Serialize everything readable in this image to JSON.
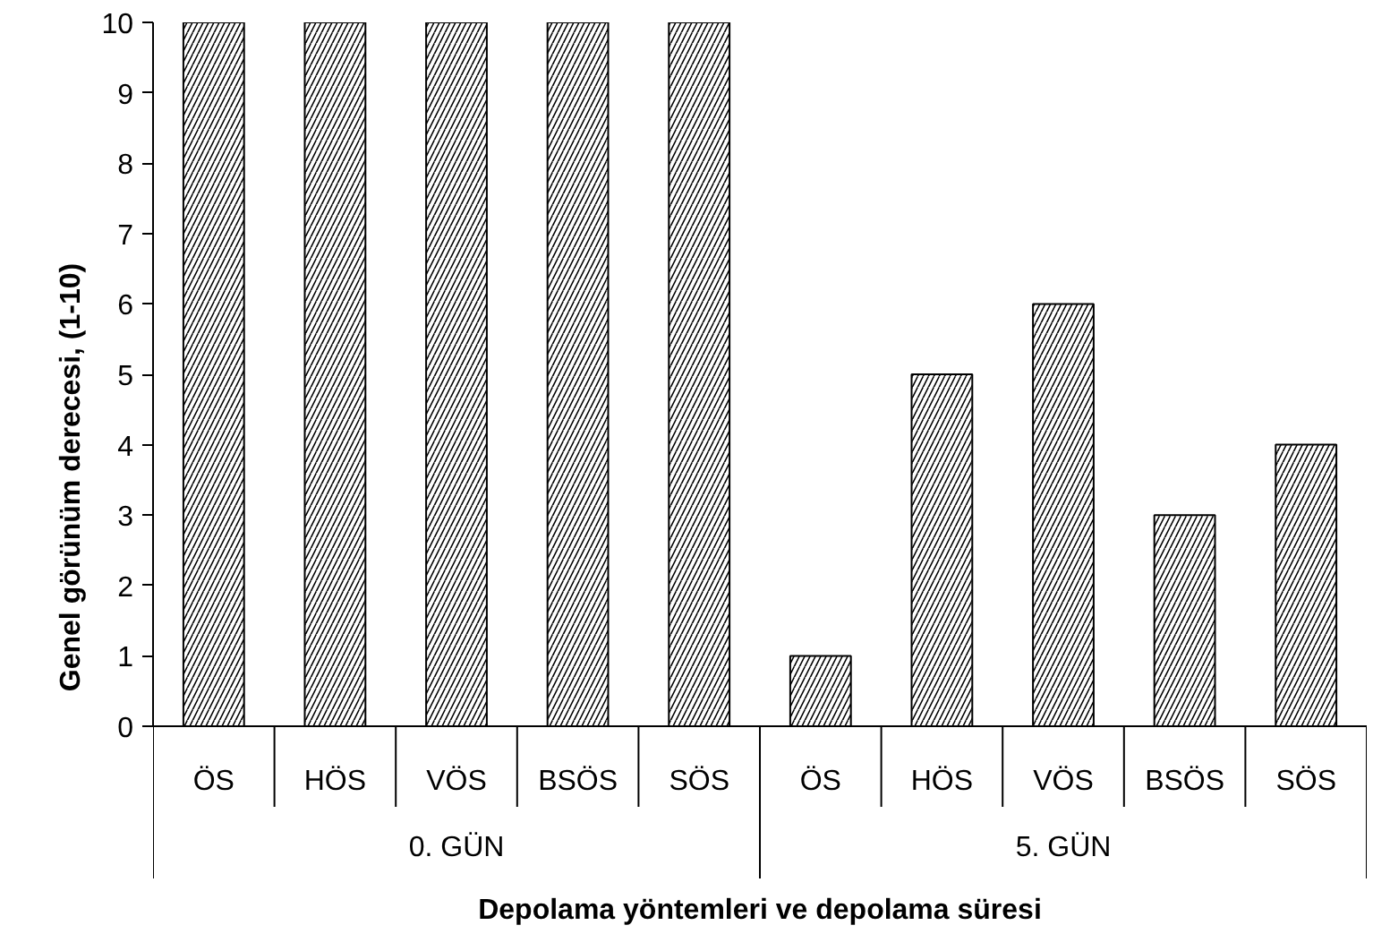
{
  "chart_data": {
    "type": "bar",
    "ylabel": "Genel görünüm derecesi, (1-10)",
    "xlabel": "Depolama yöntemleri ve depolama süresi",
    "categories": [
      "ÖS",
      "HÖS",
      "VÖS",
      "BSÖS",
      "SÖS",
      "ÖS",
      "HÖS",
      "VÖS",
      "BSÖS",
      "SÖS"
    ],
    "values": [
      10,
      10,
      10,
      10,
      10,
      1,
      5,
      6,
      3,
      4
    ],
    "color": "#ffffff",
    "annotations": [
      "0. GÜN",
      "5. GÜN"
    ],
    "ylim": [
      0,
      10
    ],
    "yticks": [
      0,
      1,
      2,
      3,
      4,
      5,
      6,
      7,
      8,
      9,
      10
    ],
    "grid": false
  }
}
